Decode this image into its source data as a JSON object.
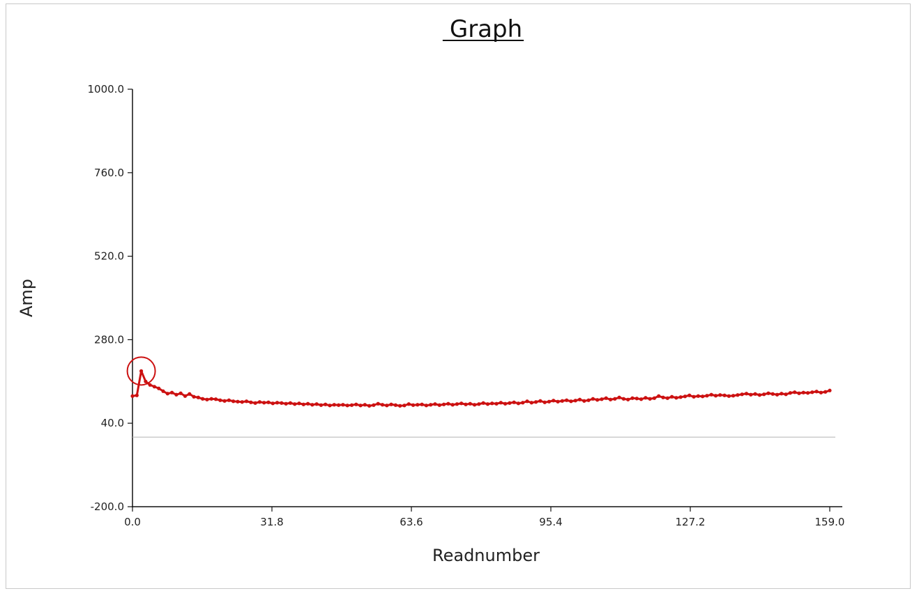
{
  "window": {
    "title": "Graph"
  },
  "chart_data": {
    "type": "line",
    "title": "Graph",
    "xlabel": "Readnumber",
    "ylabel": "Amp",
    "xlim": [
      0.0,
      159.0
    ],
    "ylim": [
      -200.0,
      1000.0
    ],
    "x_ticks": [
      "0.0",
      "31.8",
      "63.6",
      "95.4",
      "127.2",
      "159.0"
    ],
    "y_ticks": [
      "-200.0",
      "40.0",
      "280.0",
      "520.0",
      "760.0",
      "1000.0"
    ],
    "grid": false,
    "legend": "none",
    "reference_line": {
      "y": 0
    },
    "highlight": {
      "x": 2,
      "y": 190
    },
    "series_color": "#cc1111",
    "series": [
      {
        "x": [
          0,
          1,
          2,
          3,
          4,
          5,
          6,
          7,
          8,
          9,
          10,
          11,
          12,
          13,
          14,
          15,
          16,
          17,
          18,
          19,
          20,
          21,
          22,
          23,
          24,
          25,
          26,
          27,
          28,
          29,
          30,
          31,
          32,
          33,
          34,
          35,
          36,
          37,
          38,
          39,
          40,
          41,
          42,
          43,
          44,
          45,
          46,
          47,
          48,
          49,
          50,
          51,
          52,
          53,
          54,
          55,
          56,
          57,
          58,
          59,
          60,
          61,
          62,
          63,
          64,
          65,
          66,
          67,
          68,
          69,
          70,
          71,
          72,
          73,
          74,
          75,
          76,
          77,
          78,
          79,
          80,
          81,
          82,
          83,
          84,
          85,
          86,
          87,
          88,
          89,
          90,
          91,
          92,
          93,
          94,
          95,
          96,
          97,
          98,
          99,
          100,
          101,
          102,
          103,
          104,
          105,
          106,
          107,
          108,
          109,
          110,
          111,
          112,
          113,
          114,
          115,
          116,
          117,
          118,
          119,
          120,
          121,
          122,
          123,
          124,
          125,
          126,
          127,
          128,
          129,
          130,
          131,
          132,
          133,
          134,
          135,
          136,
          137,
          138,
          139,
          140,
          141,
          142,
          143,
          144,
          145,
          146,
          147,
          148,
          149,
          150,
          151,
          152,
          153,
          154,
          155,
          156,
          157,
          158,
          159
        ],
        "values": [
          118,
          120,
          190,
          160,
          150,
          145,
          140,
          132,
          125,
          128,
          122,
          126,
          118,
          124,
          116,
          114,
          110,
          108,
          110,
          109,
          106,
          104,
          106,
          103,
          102,
          101,
          103,
          100,
          98,
          101,
          99,
          100,
          97,
          99,
          98,
          96,
          98,
          95,
          97,
          94,
          96,
          93,
          95,
          92,
          94,
          91,
          93,
          92,
          93,
          91,
          92,
          94,
          91,
          93,
          90,
          92,
          96,
          93,
          91,
          94,
          92,
          90,
          91,
          95,
          92,
          93,
          94,
          91,
          93,
          95,
          92,
          94,
          96,
          93,
          95,
          97,
          94,
          96,
          93,
          95,
          98,
          95,
          97,
          96,
          99,
          96,
          98,
          100,
          97,
          99,
          103,
          99,
          101,
          104,
          100,
          102,
          105,
          102,
          104,
          106,
          103,
          105,
          108,
          104,
          106,
          110,
          107,
          109,
          112,
          108,
          110,
          114,
          110,
          108,
          112,
          111,
          109,
          113,
          110,
          112,
          118,
          114,
          112,
          116,
          113,
          115,
          117,
          120,
          116,
          118,
          117,
          119,
          122,
          119,
          121,
          120,
          118,
          119,
          121,
          123,
          125,
          122,
          124,
          121,
          123,
          126,
          124,
          122,
          125,
          123,
          127,
          129,
          126,
          128,
          127,
          129,
          131,
          128,
          130,
          134
        ]
      }
    ]
  }
}
